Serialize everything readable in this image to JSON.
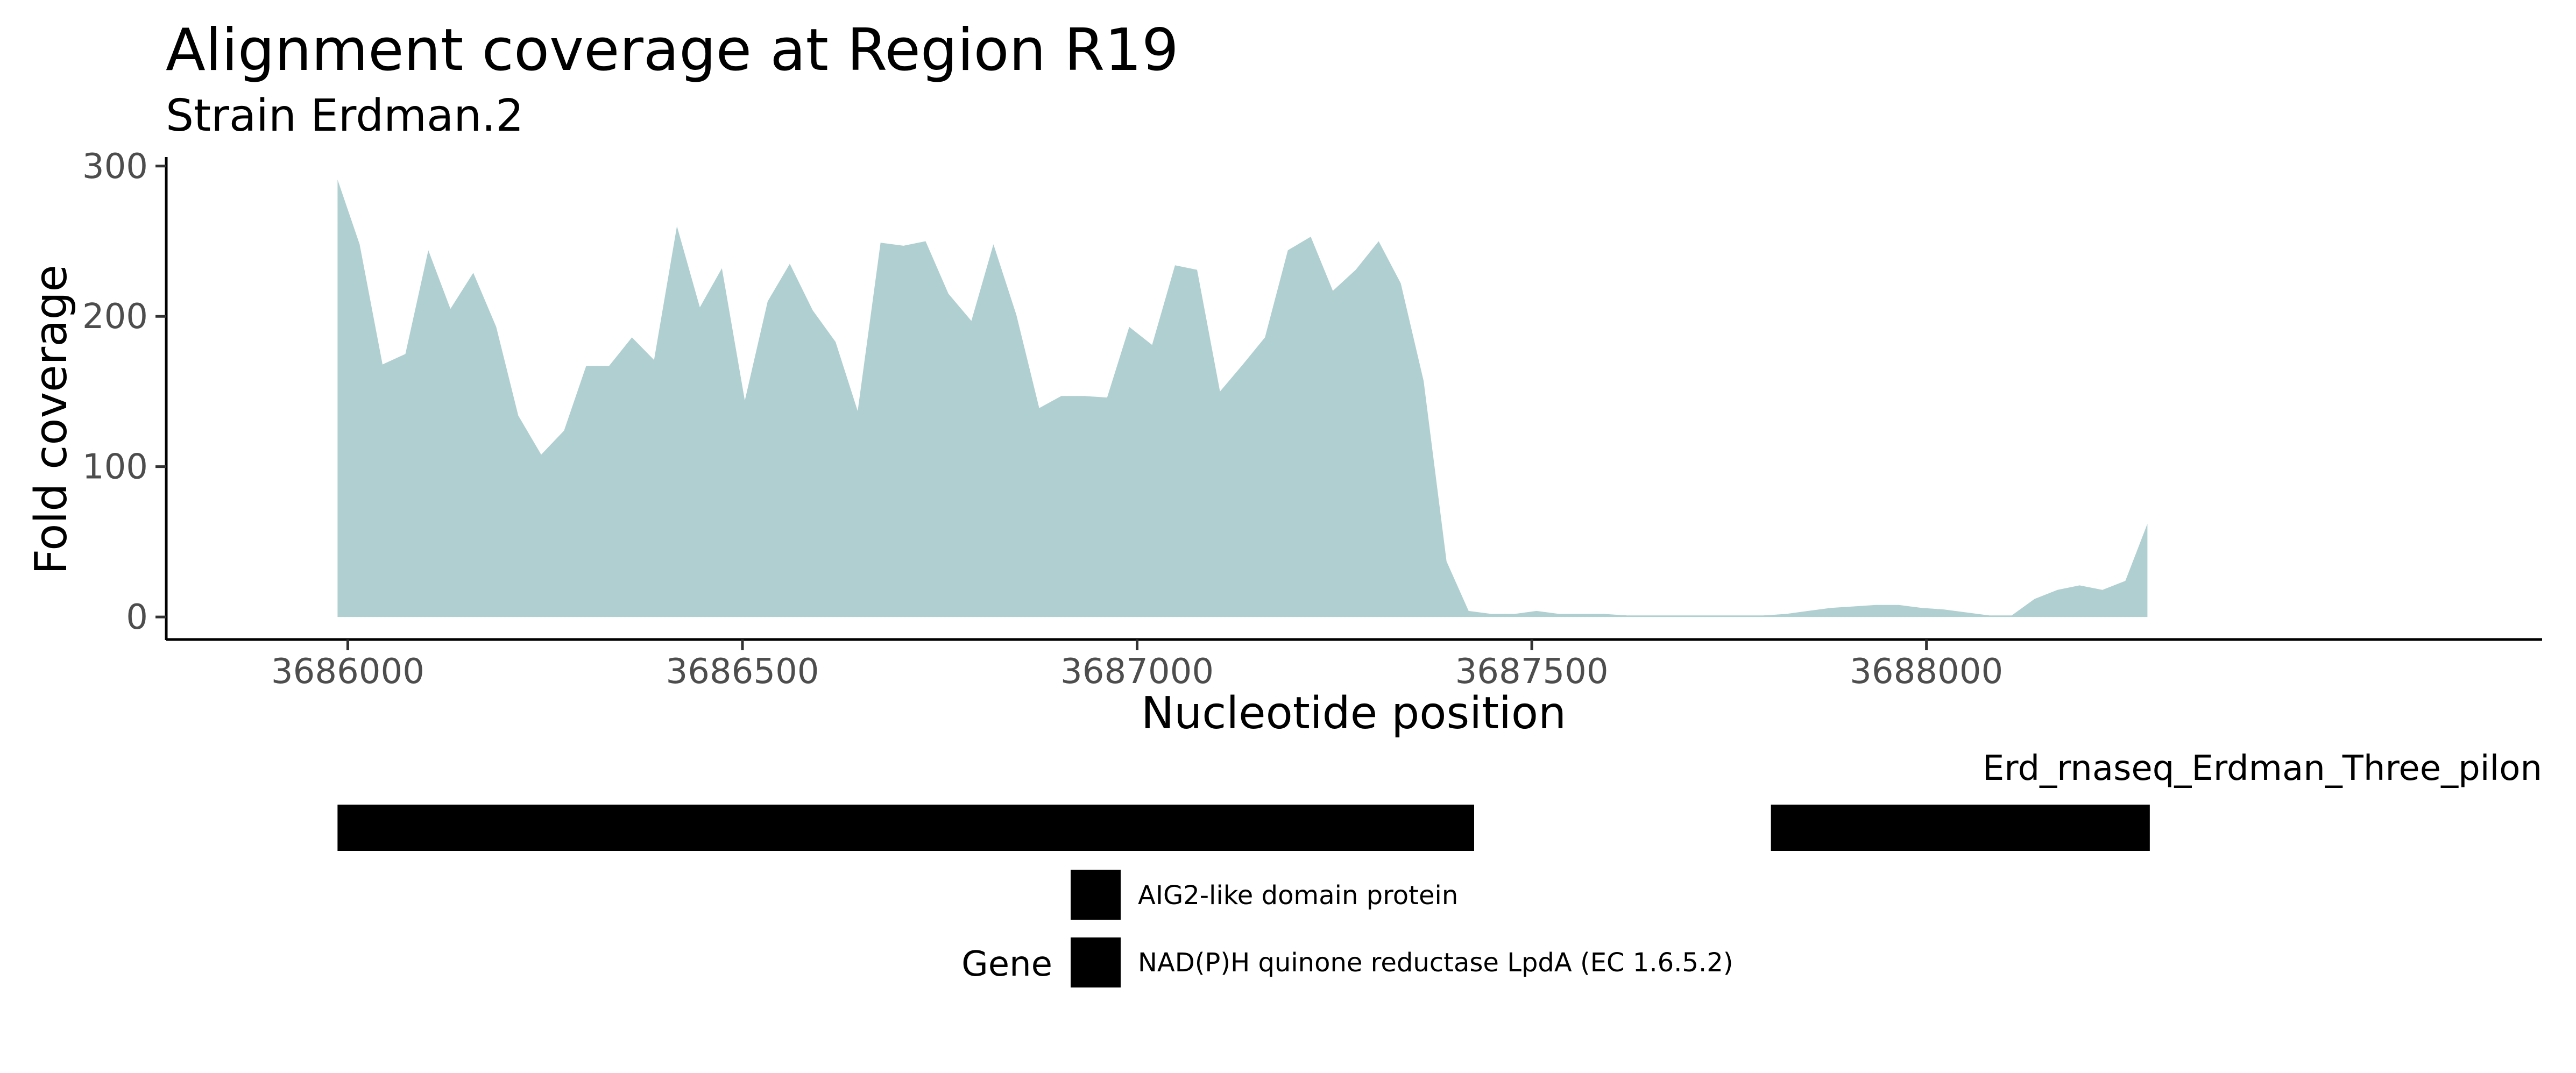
{
  "colors": {
    "area_fill": "#b0cfd1",
    "gene_bar": "#000000",
    "axis": "#000000"
  },
  "chart_data": {
    "type": "area",
    "title": "Alignment coverage at Region R19",
    "subtitle": "Strain Erdman.2",
    "xlabel": "Nucleotide position",
    "ylabel": "Fold coverage",
    "xlim": [
      3685770,
      3688780
    ],
    "ylim": [
      -15,
      306
    ],
    "x_ticks": [
      {
        "value": 3686000,
        "label": "3686000"
      },
      {
        "value": 3686500,
        "label": "3686500"
      },
      {
        "value": 3687000,
        "label": "3687000"
      },
      {
        "value": 3687500,
        "label": "3687500"
      },
      {
        "value": 3688000,
        "label": "3688000"
      }
    ],
    "y_ticks": [
      {
        "value": 0,
        "label": "0"
      },
      {
        "value": 100,
        "label": "100"
      },
      {
        "value": 200,
        "label": "200"
      },
      {
        "value": 300,
        "label": "300"
      }
    ],
    "grid": false,
    "series": [
      {
        "x": [
          3685987,
          3686015,
          3686044,
          3686073,
          3686102,
          3686130,
          3686159,
          3686188,
          3686216,
          3686245,
          3686274,
          3686302,
          3686331,
          3686360,
          3686388,
          3686417,
          3686446,
          3686474,
          3686503,
          3686532,
          3686560,
          3686589,
          3686618,
          3686646,
          3686675,
          3686704,
          3686732,
          3686761,
          3686790,
          3686818,
          3686847,
          3686876,
          3686904,
          3686933,
          3686962,
          3686990,
          3687019,
          3687048,
          3687076,
          3687105,
          3687134,
          3687162,
          3687191,
          3687220,
          3687248,
          3687277,
          3687306,
          3687334,
          3687363,
          3687392,
          3687420,
          3687449,
          3687478,
          3687506,
          3687535,
          3687564,
          3687592,
          3687621,
          3687650,
          3687678,
          3687707,
          3687736,
          3687764,
          3687793,
          3687822,
          3687850,
          3687879,
          3687908,
          3687936,
          3687965,
          3687994,
          3688022,
          3688051,
          3688080,
          3688108,
          3688137,
          3688166,
          3688194,
          3688223,
          3688252,
          3688280
        ],
        "y": [
          291,
          248,
          168,
          175,
          244,
          205,
          229,
          193,
          134,
          108,
          124,
          167,
          167,
          186,
          171,
          260,
          206,
          232,
          144,
          210,
          235,
          204,
          183,
          137,
          249,
          247,
          250,
          215,
          197,
          248,
          201,
          139,
          147,
          147,
          146,
          193,
          181,
          234,
          231,
          150,
          168,
          186,
          244,
          253,
          217,
          231,
          250,
          222,
          157,
          37,
          4,
          2,
          2,
          4,
          2,
          2,
          2,
          1,
          1,
          1,
          1,
          1,
          1,
          1,
          2,
          4,
          6,
          7,
          8,
          8,
          6,
          5,
          3,
          1,
          1,
          12,
          18,
          21,
          18,
          24,
          62
        ]
      }
    ]
  },
  "gene_track": {
    "annotation_label": "Erd_rnaseq_Erdman_Three_pilon",
    "genes": [
      {
        "start": 3685987,
        "end": 3687427
      },
      {
        "start": 3687803,
        "end": 3688283
      }
    ],
    "legend": {
      "title": "Gene",
      "entries": [
        {
          "label": "AIG2-like domain protein",
          "color": "#000000"
        },
        {
          "label": "NAD(P)H quinone reductase LpdA (EC 1.6.5.2)",
          "color": "#000000"
        }
      ]
    }
  }
}
